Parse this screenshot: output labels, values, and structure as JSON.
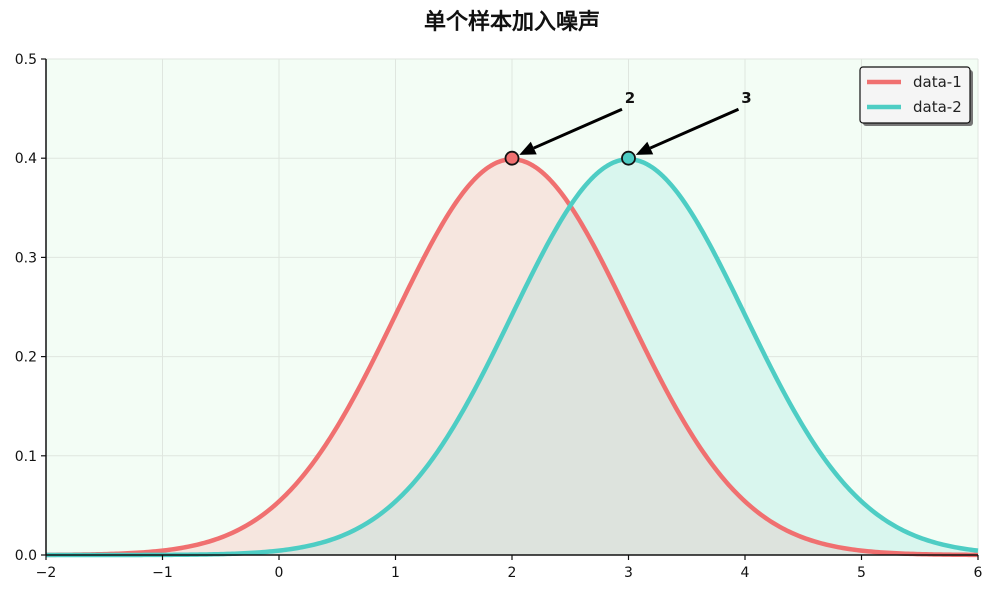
{
  "chart_data": {
    "type": "area",
    "title": "单个样本加入噪声",
    "xlabel": "",
    "ylabel": "",
    "xlim": [
      -2,
      6
    ],
    "ylim": [
      0,
      0.5
    ],
    "xticks": [
      -2,
      -1,
      0,
      1,
      2,
      3,
      4,
      5,
      6
    ],
    "xtick_labels": [
      "−2",
      "−1",
      "0",
      "1",
      "2",
      "3",
      "4",
      "5",
      "6"
    ],
    "yticks": [
      0.0,
      0.1,
      0.2,
      0.3,
      0.4,
      0.5
    ],
    "ytick_labels": [
      "0.0",
      "0.1",
      "0.2",
      "0.3",
      "0.4",
      "0.5"
    ],
    "grid": true,
    "legend_position": "top-right",
    "background_color": "#f3fdf5",
    "series": [
      {
        "name": "data-1",
        "distribution": "normal",
        "mean": 2,
        "std": 1,
        "color": "#f07070",
        "fill_color": "#f6e6df",
        "peak": {
          "x": 2,
          "y": 0.4,
          "label": "2"
        }
      },
      {
        "name": "data-2",
        "distribution": "normal",
        "mean": 3,
        "std": 1,
        "color": "#4ecdc4",
        "fill_color": "#d9f6ee",
        "peak": {
          "x": 3,
          "y": 0.4,
          "label": "3"
        }
      }
    ],
    "overlap_fill_color": "#dde3dd"
  }
}
